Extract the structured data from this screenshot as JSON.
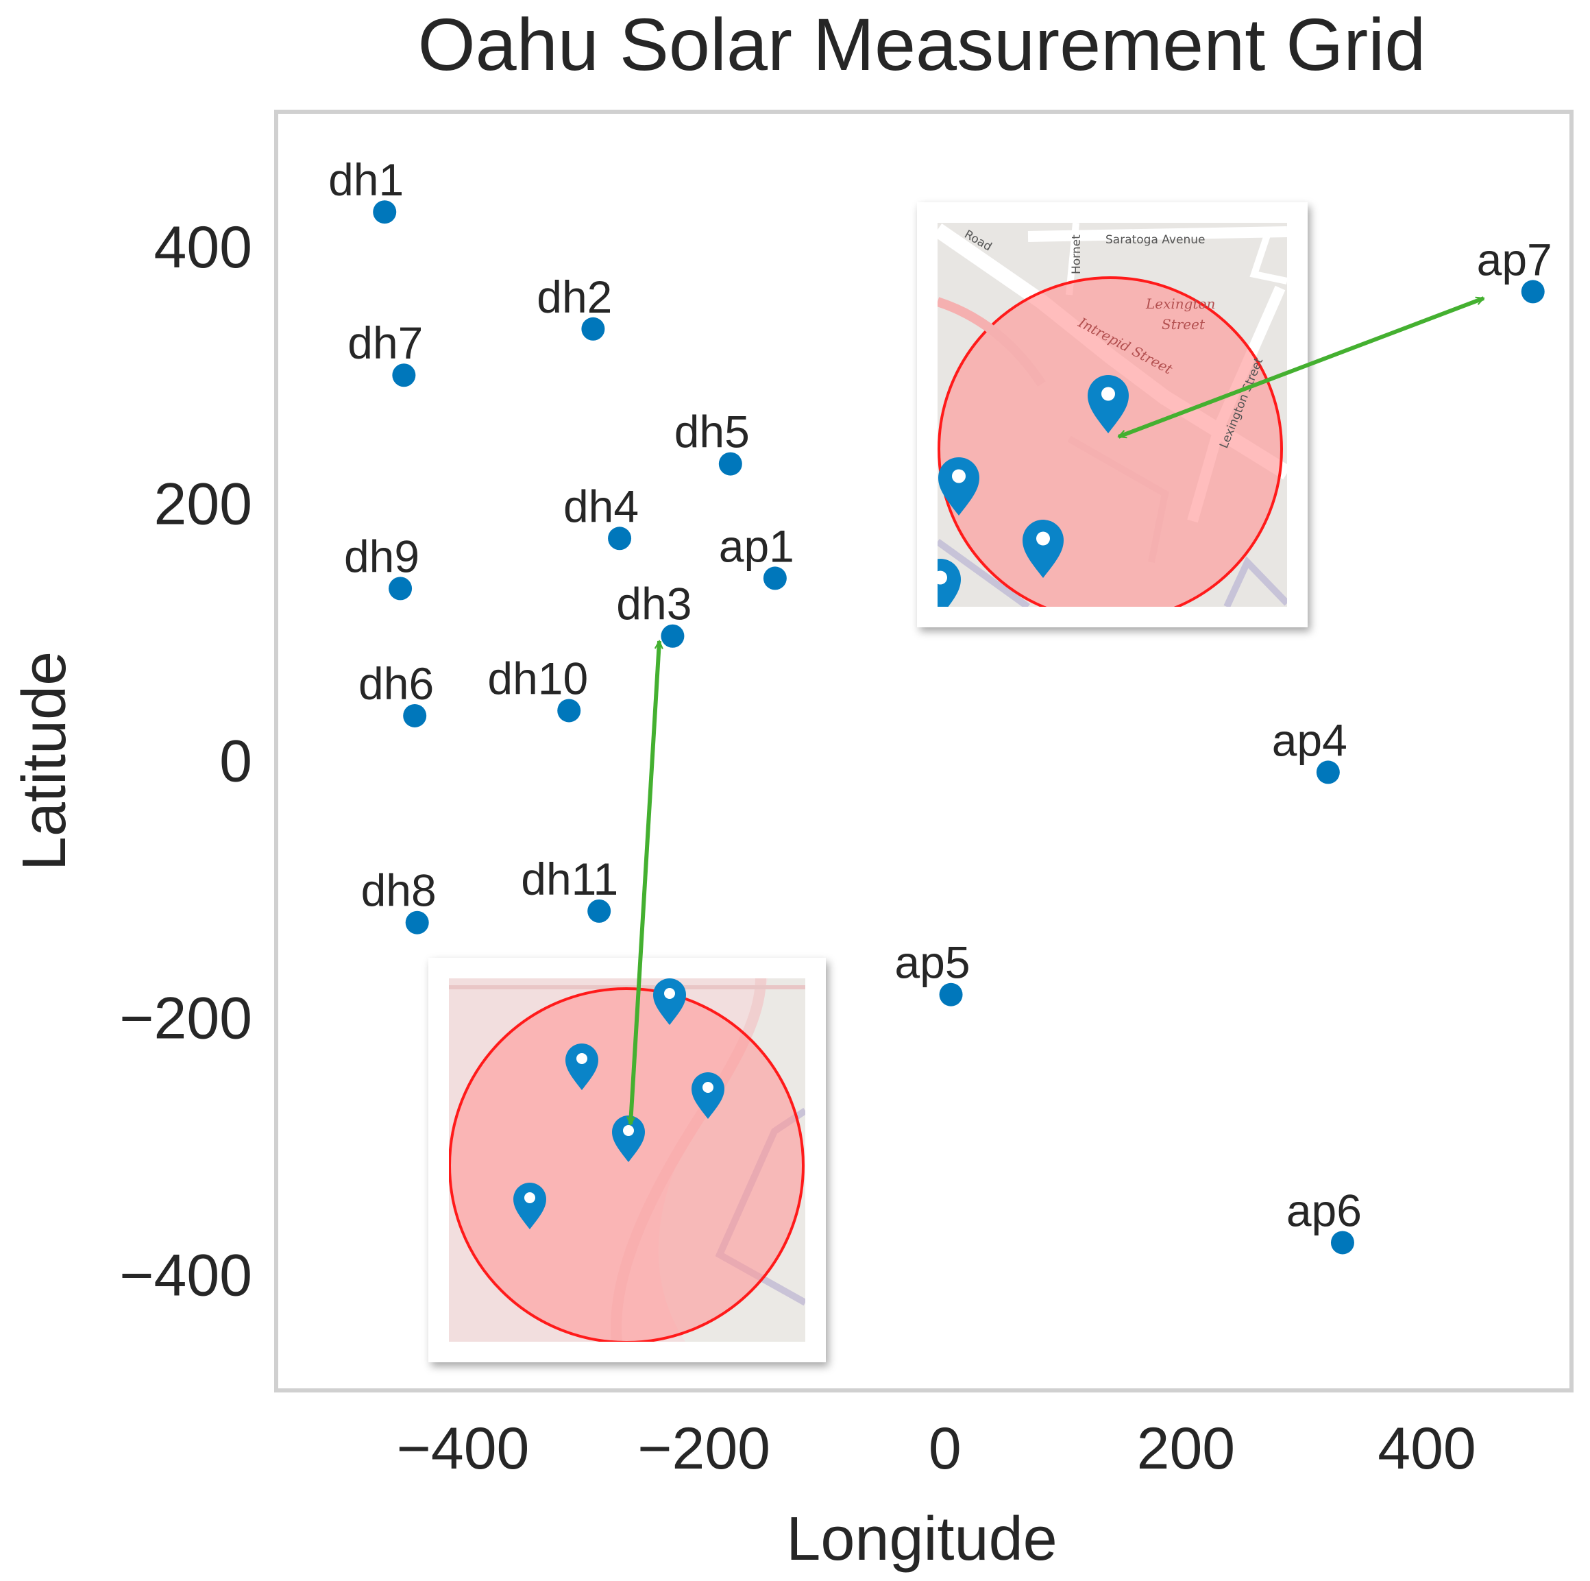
{
  "chart_data": {
    "type": "scatter",
    "title": "Oahu Solar Measurement Grid",
    "xlabel": "Longitude",
    "ylabel": "Latitude",
    "xlim": [
      -555,
      520
    ],
    "ylim": [
      -490,
      505
    ],
    "xticks": [
      -400,
      -200,
      0,
      200,
      400
    ],
    "yticks": [
      -400,
      -200,
      0,
      200,
      400
    ],
    "xtick_labels": [
      "−400",
      "−200",
      "0",
      "200",
      "400"
    ],
    "ytick_labels": [
      "−400",
      "−200",
      "0",
      "200",
      "400"
    ],
    "grid": false,
    "marker_color": "#0077bb",
    "arrow_color": "#44b030",
    "points": [
      {
        "label": "dh1",
        "x": -465,
        "y": 427
      },
      {
        "label": "dh2",
        "x": -292,
        "y": 336
      },
      {
        "label": "dh7",
        "x": -449,
        "y": 300
      },
      {
        "label": "dh5",
        "x": -178,
        "y": 231
      },
      {
        "label": "dh4",
        "x": -270,
        "y": 173
      },
      {
        "label": "ap1",
        "x": -141,
        "y": 142
      },
      {
        "label": "dh9",
        "x": -452,
        "y": 134
      },
      {
        "label": "dh3",
        "x": -226,
        "y": 97
      },
      {
        "label": "dh6",
        "x": -440,
        "y": 35
      },
      {
        "label": "dh10",
        "x": -312,
        "y": 39
      },
      {
        "label": "ap4",
        "x": 318,
        "y": -9
      },
      {
        "label": "dh8",
        "x": -438,
        "y": -126
      },
      {
        "label": "dh11",
        "x": -287,
        "y": -117
      },
      {
        "label": "ap5",
        "x": 5,
        "y": -182
      },
      {
        "label": "ap6",
        "x": 330,
        "y": -375
      },
      {
        "label": "ap7",
        "x": 488,
        "y": 365
      }
    ],
    "insets": [
      {
        "name": "inset-upper",
        "arrow_from_point": "ap7",
        "map_texts": [
          "Saratoga Avenue",
          "Lexington",
          "Street",
          "Intrepid Street",
          "Lexington Street",
          "Hornet",
          "Road"
        ]
      },
      {
        "name": "inset-lower",
        "arrow_from_point": "dh3",
        "map_texts": []
      }
    ]
  }
}
